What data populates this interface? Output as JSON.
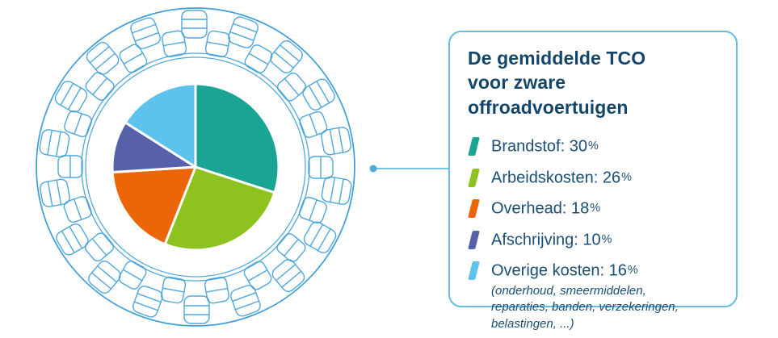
{
  "colors": {
    "accent_line": "#3D9ED8",
    "connector": "#4FABD9",
    "card_border": "#62BCE5",
    "title_navy": "#14466B",
    "text_navy": "#1A4E74",
    "slice_gap_white": "#FFFFFF"
  },
  "legend": {
    "title_line1": "De gemiddelde TCO",
    "title_line2": "voor zware offroadvoertuigen"
  },
  "chart_data": {
    "type": "pie",
    "title": "De gemiddelde TCO voor zware offroadvoertuigen",
    "start_angle_deg": -90,
    "direction": "clockwise",
    "slices": [
      {
        "label": "Brandstof",
        "value": 30,
        "color": "#1AA493",
        "legend_label": "Brandstof: 30%"
      },
      {
        "label": "Arbeidskosten",
        "value": 26,
        "color": "#8DC21F",
        "legend_label": "Arbeidskosten: 26%"
      },
      {
        "label": "Overhead",
        "value": 18,
        "color": "#EC6608",
        "legend_label": "Overhead: 18%"
      },
      {
        "label": "Afschrijving",
        "value": 10,
        "color": "#5661A9",
        "legend_label": "Afschrijving: 10%"
      },
      {
        "label": "Overige kosten",
        "value": 16,
        "color": "#5EC3EC",
        "legend_label": "Overige kosten: 16%",
        "note": "(onderhoud, smeermiddelen, reparaties, banden, verzekeringen, belastingen, ...)"
      }
    ]
  }
}
